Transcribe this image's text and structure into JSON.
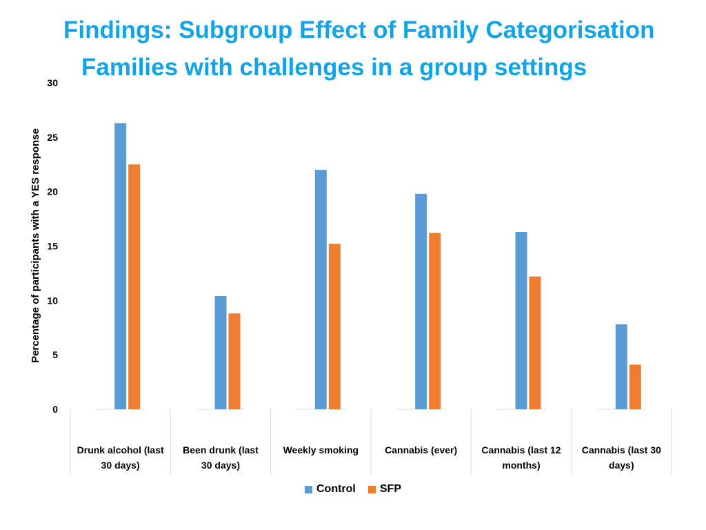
{
  "slide": {
    "title_line1": "Findings: Subgroup Effect of Family Categorisation",
    "title_line2": "Families with challenges in a group settings",
    "title_color": "#13A3E6"
  },
  "chart_data": {
    "type": "bar",
    "title": "",
    "xlabel": "",
    "ylabel": "Percentage of participants with a YES response",
    "ylim": [
      0,
      30
    ],
    "yticks": [
      0,
      5,
      10,
      15,
      20,
      25,
      30
    ],
    "grid": false,
    "legend_position": "bottom",
    "categories": [
      [
        "Drunk alcohol (last",
        "30 days)"
      ],
      [
        "Been drunk (last",
        "30 days)"
      ],
      [
        "Weekly smoking"
      ],
      [
        "Cannabis (ever)"
      ],
      [
        "Cannabis (last 12",
        "months)"
      ],
      [
        "Cannabis (last 30",
        "days)"
      ]
    ],
    "series": [
      {
        "name": "Control",
        "color": "#5B9BD5",
        "values": [
          26.3,
          10.4,
          22.0,
          19.8,
          16.3,
          7.8
        ]
      },
      {
        "name": "SFP",
        "color": "#ED7D31",
        "values": [
          22.5,
          8.8,
          15.2,
          16.2,
          12.2,
          4.1
        ]
      }
    ]
  }
}
